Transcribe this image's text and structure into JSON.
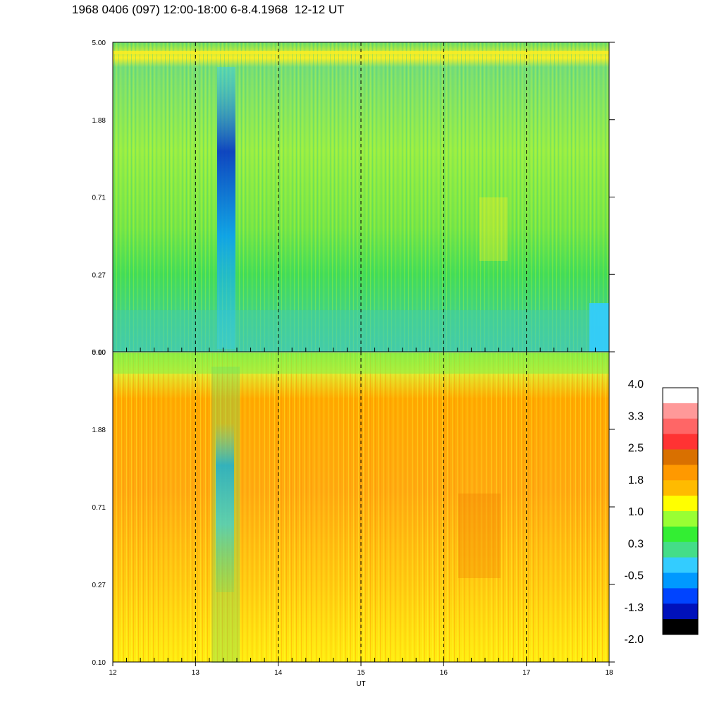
{
  "title": "1968 0406 (097) 12:00-18:00 6-8.4.1968  12-12 UT",
  "chart_data": [
    {
      "type": "heatmap",
      "panel": "upper",
      "xlim": [
        12,
        18
      ],
      "y_ticks": [
        "5.00",
        "1.88",
        "0.71",
        "0.27",
        "0.10"
      ],
      "y_scale": "log",
      "ylim": [
        0.1,
        5.0
      ],
      "grid": "vertical dashed lines at each hour"
    },
    {
      "type": "heatmap",
      "panel": "lower",
      "xlim": [
        12,
        18
      ],
      "x_ticks": [
        "12",
        "13",
        "14",
        "15",
        "16",
        "17",
        "18"
      ],
      "xlabel": "UT",
      "y_ticks": [
        "5.00",
        "1.88",
        "0.71",
        "0.27",
        "0.10"
      ],
      "y_scale": "log",
      "ylim": [
        0.1,
        5.0
      ],
      "grid": "vertical dashed lines at each hour"
    }
  ],
  "colorbar": {
    "labels": [
      "4.0",
      "3.3",
      "2.5",
      "1.8",
      "1.0",
      "0.3",
      "-0.5",
      "-1.3",
      "-2.0"
    ],
    "colors": [
      "#ffffff",
      "#ff9999",
      "#ff6666",
      "#ff3333",
      "#d97000",
      "#ff9900",
      "#ffbb00",
      "#ffff00",
      "#99ff33",
      "#33ee33",
      "#44dd88",
      "#33ccff",
      "#0099ff",
      "#0044ff",
      "#0011bb",
      "#000000"
    ]
  }
}
